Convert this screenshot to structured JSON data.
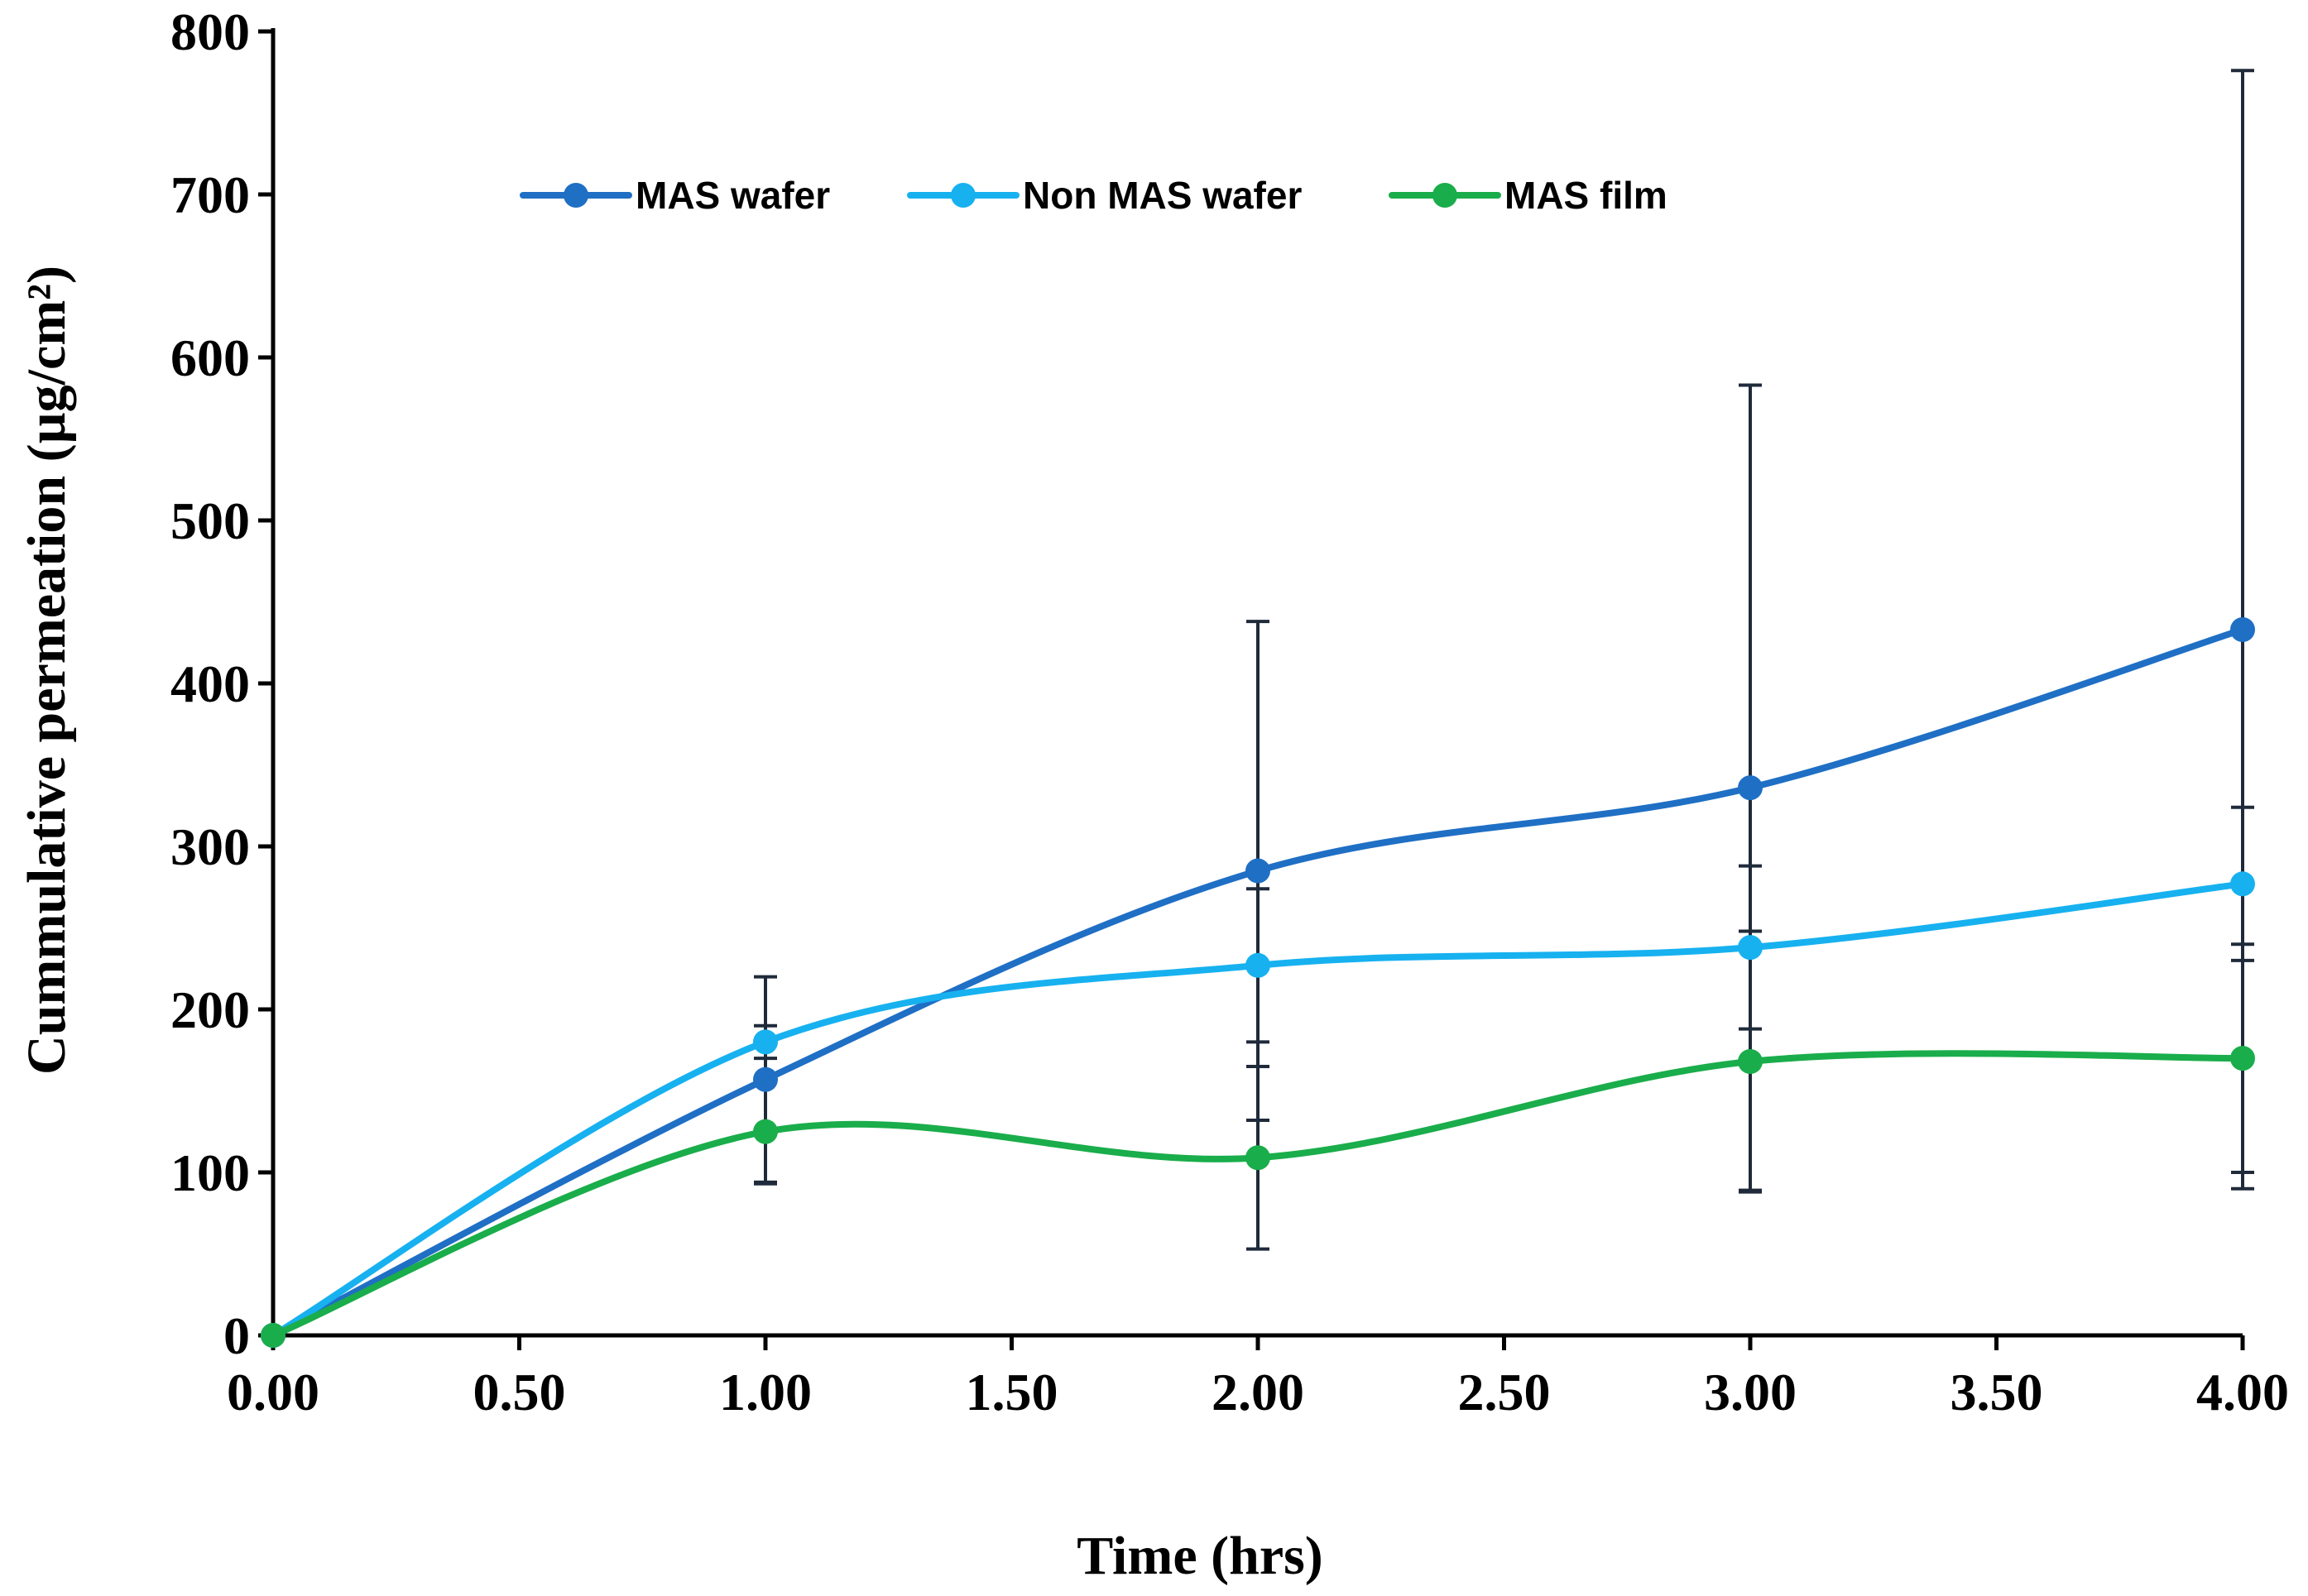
{
  "chart_data": {
    "type": "line",
    "title": "",
    "xlabel": "Time (hrs)",
    "ylabel": "Cummulative permeation (µg/cm²)",
    "x": [
      0,
      1,
      2,
      3,
      4
    ],
    "xlim": [
      0,
      4
    ],
    "ylim": [
      0,
      800
    ],
    "xticks": [
      0,
      0.5,
      1,
      1.5,
      2,
      2.5,
      3,
      3.5,
      4
    ],
    "xtick_labels": [
      "0.00",
      "0.50",
      "1.00",
      "1.50",
      "2.00",
      "2.50",
      "3.00",
      "3.50",
      "4.00"
    ],
    "yticks": [
      0,
      100,
      200,
      300,
      400,
      500,
      600,
      700,
      800
    ],
    "ytick_labels": [
      "0",
      "100",
      "200",
      "300",
      "400",
      "500",
      "600",
      "700",
      "800"
    ],
    "grid": false,
    "smooth": true,
    "legend_position": "top-center",
    "series": [
      {
        "name": "MAS wafer",
        "color": "#1f6fc5",
        "values": [
          0,
          157,
          285,
          336,
          433
        ],
        "errors": [
          0,
          63,
          153,
          247,
          343
        ]
      },
      {
        "name": "Non MAS wafer",
        "color": "#17b1f0",
        "values": [
          0,
          180,
          227,
          238,
          277
        ],
        "errors": [
          0,
          10,
          47,
          50,
          47
        ]
      },
      {
        "name": "MAS film",
        "color": "#1aad4b",
        "values": [
          0,
          125,
          109,
          168,
          170
        ],
        "errors": [
          0,
          32,
          56,
          80,
          70
        ]
      }
    ]
  }
}
